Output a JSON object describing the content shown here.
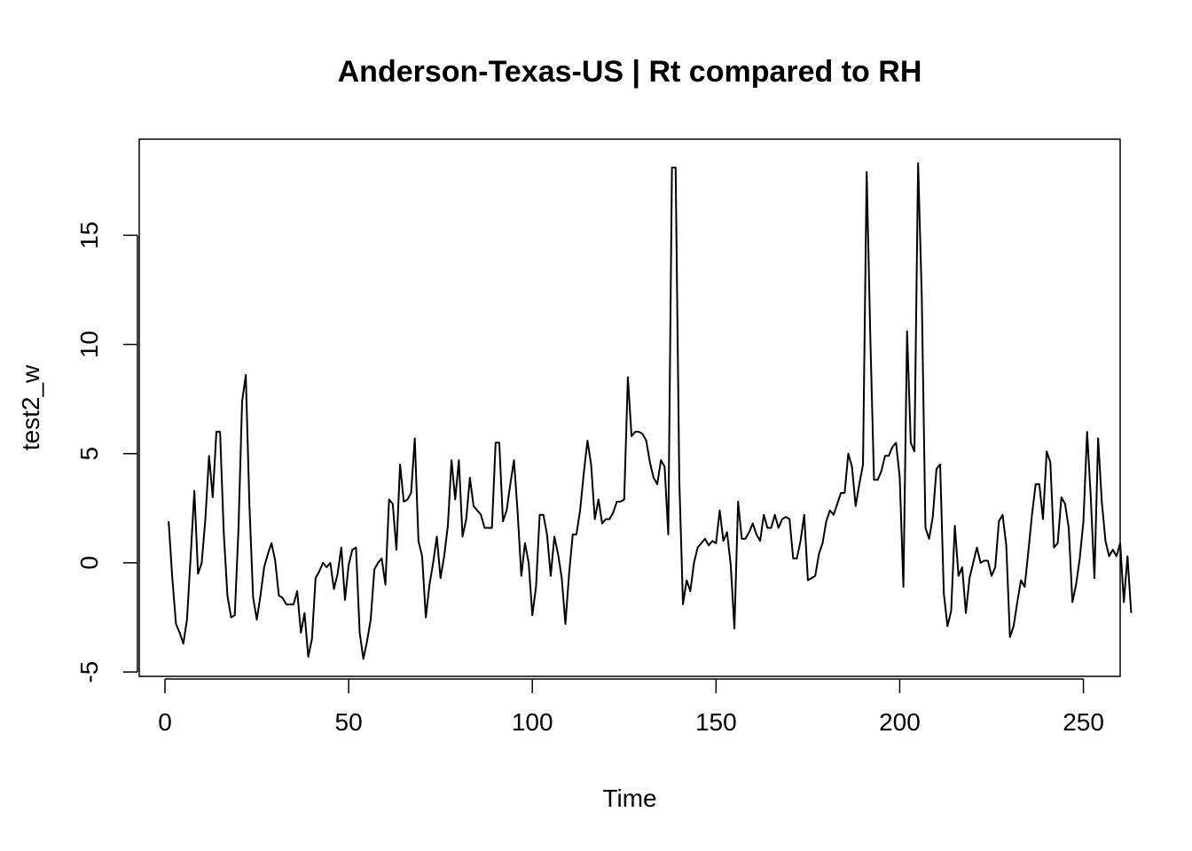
{
  "chart_data": {
    "type": "line",
    "title": "Anderson-Texas-US | Rt compared to RH",
    "xlabel": "Time",
    "ylabel": "test2_w",
    "xlim": [
      -7,
      260
    ],
    "ylim": [
      -5.2,
      19.4
    ],
    "x_ticks": [
      0,
      50,
      100,
      150,
      200,
      250
    ],
    "y_ticks": [
      -5,
      0,
      5,
      10,
      15
    ],
    "grid": false,
    "legend": "none",
    "line_color": "#000000",
    "series": [
      {
        "values": [
          1.9,
          -0.7,
          -2.8,
          -3.2,
          -3.7,
          -2.6,
          0.3,
          3.3,
          -0.5,
          0.0,
          2.0,
          4.9,
          3.0,
          6.0,
          6.0,
          1.4,
          -1.5,
          -2.5,
          -2.4,
          1.5,
          7.4,
          8.6,
          2.6,
          -1.6,
          -2.6,
          -1.5,
          -0.2,
          0.4,
          0.9,
          0.1,
          -1.5,
          -1.6,
          -1.9,
          -1.9,
          -1.9,
          -1.3,
          -3.2,
          -2.3,
          -4.3,
          -3.5,
          -0.7,
          -0.4,
          0.0,
          -0.2,
          0.0,
          -1.2,
          -0.5,
          0.7,
          -1.7,
          -0.1,
          0.6,
          0.7,
          -3.2,
          -4.4,
          -3.6,
          -2.6,
          -0.3,
          0.0,
          0.2,
          -1.0,
          2.9,
          2.7,
          0.6,
          4.5,
          2.8,
          2.9,
          3.2,
          5.7,
          1.0,
          0.3,
          -2.5,
          -1.0,
          0.0,
          1.2,
          -0.7,
          0.3,
          1.7,
          4.7,
          2.9,
          4.7,
          1.2,
          2.0,
          3.9,
          2.6,
          2.4,
          2.2,
          1.6,
          1.6,
          1.6,
          5.5,
          5.5,
          1.9,
          2.4,
          3.6,
          4.7,
          2.3,
          -0.6,
          0.9,
          0.0,
          -2.4,
          -1.1,
          2.2,
          2.2,
          1.3,
          -0.6,
          1.2,
          0.4,
          -0.7,
          -2.8,
          -0.5,
          1.3,
          1.3,
          2.4,
          4.1,
          5.6,
          4.5,
          2.0,
          2.9,
          1.8,
          2.0,
          2.0,
          2.3,
          2.8,
          2.8,
          2.9,
          8.5,
          5.8,
          6.0,
          6.0,
          5.9,
          5.6,
          4.6,
          3.9,
          3.6,
          4.7,
          4.4,
          1.3,
          18.1,
          18.1,
          3.8,
          -1.9,
          -0.8,
          -1.3,
          0.0,
          0.7,
          0.9,
          1.1,
          0.8,
          1.0,
          0.9,
          2.4,
          1.0,
          1.4,
          -0.1,
          -3.0,
          2.8,
          1.1,
          1.1,
          1.4,
          1.8,
          1.3,
          1.0,
          2.2,
          1.6,
          1.6,
          2.2,
          1.6,
          2.0,
          2.1,
          2.0,
          0.2,
          0.2,
          1.0,
          2.2,
          -0.8,
          -0.7,
          -0.6,
          0.4,
          0.9,
          1.9,
          2.4,
          2.2,
          2.7,
          3.2,
          3.2,
          5.0,
          4.4,
          2.6,
          3.6,
          4.5,
          17.9,
          10.3,
          3.8,
          3.8,
          4.2,
          4.9,
          4.9,
          5.3,
          5.5,
          3.9,
          -1.1,
          10.6,
          5.5,
          5.1,
          18.3,
          12.2,
          1.6,
          1.1,
          2.1,
          4.3,
          4.5,
          -1.4,
          -2.9,
          -2.2,
          1.7,
          -0.6,
          -0.2,
          -2.3,
          -0.7,
          0.0,
          0.7,
          0.0,
          0.1,
          0.1,
          -0.6,
          -0.2,
          1.9,
          2.2,
          0.8,
          -3.4,
          -2.9,
          -1.8,
          -0.8,
          -1.1,
          0.5,
          2.2,
          3.6,
          3.6,
          2.0,
          5.1,
          4.6,
          0.7,
          0.9,
          3.0,
          2.7,
          1.6,
          -1.8,
          -1.0,
          0.2,
          1.9,
          6.0,
          3.0,
          -0.7,
          5.7,
          2.8,
          1.0,
          0.3,
          0.6,
          0.3,
          0.9,
          -1.8,
          0.3,
          -2.3
        ]
      }
    ]
  }
}
